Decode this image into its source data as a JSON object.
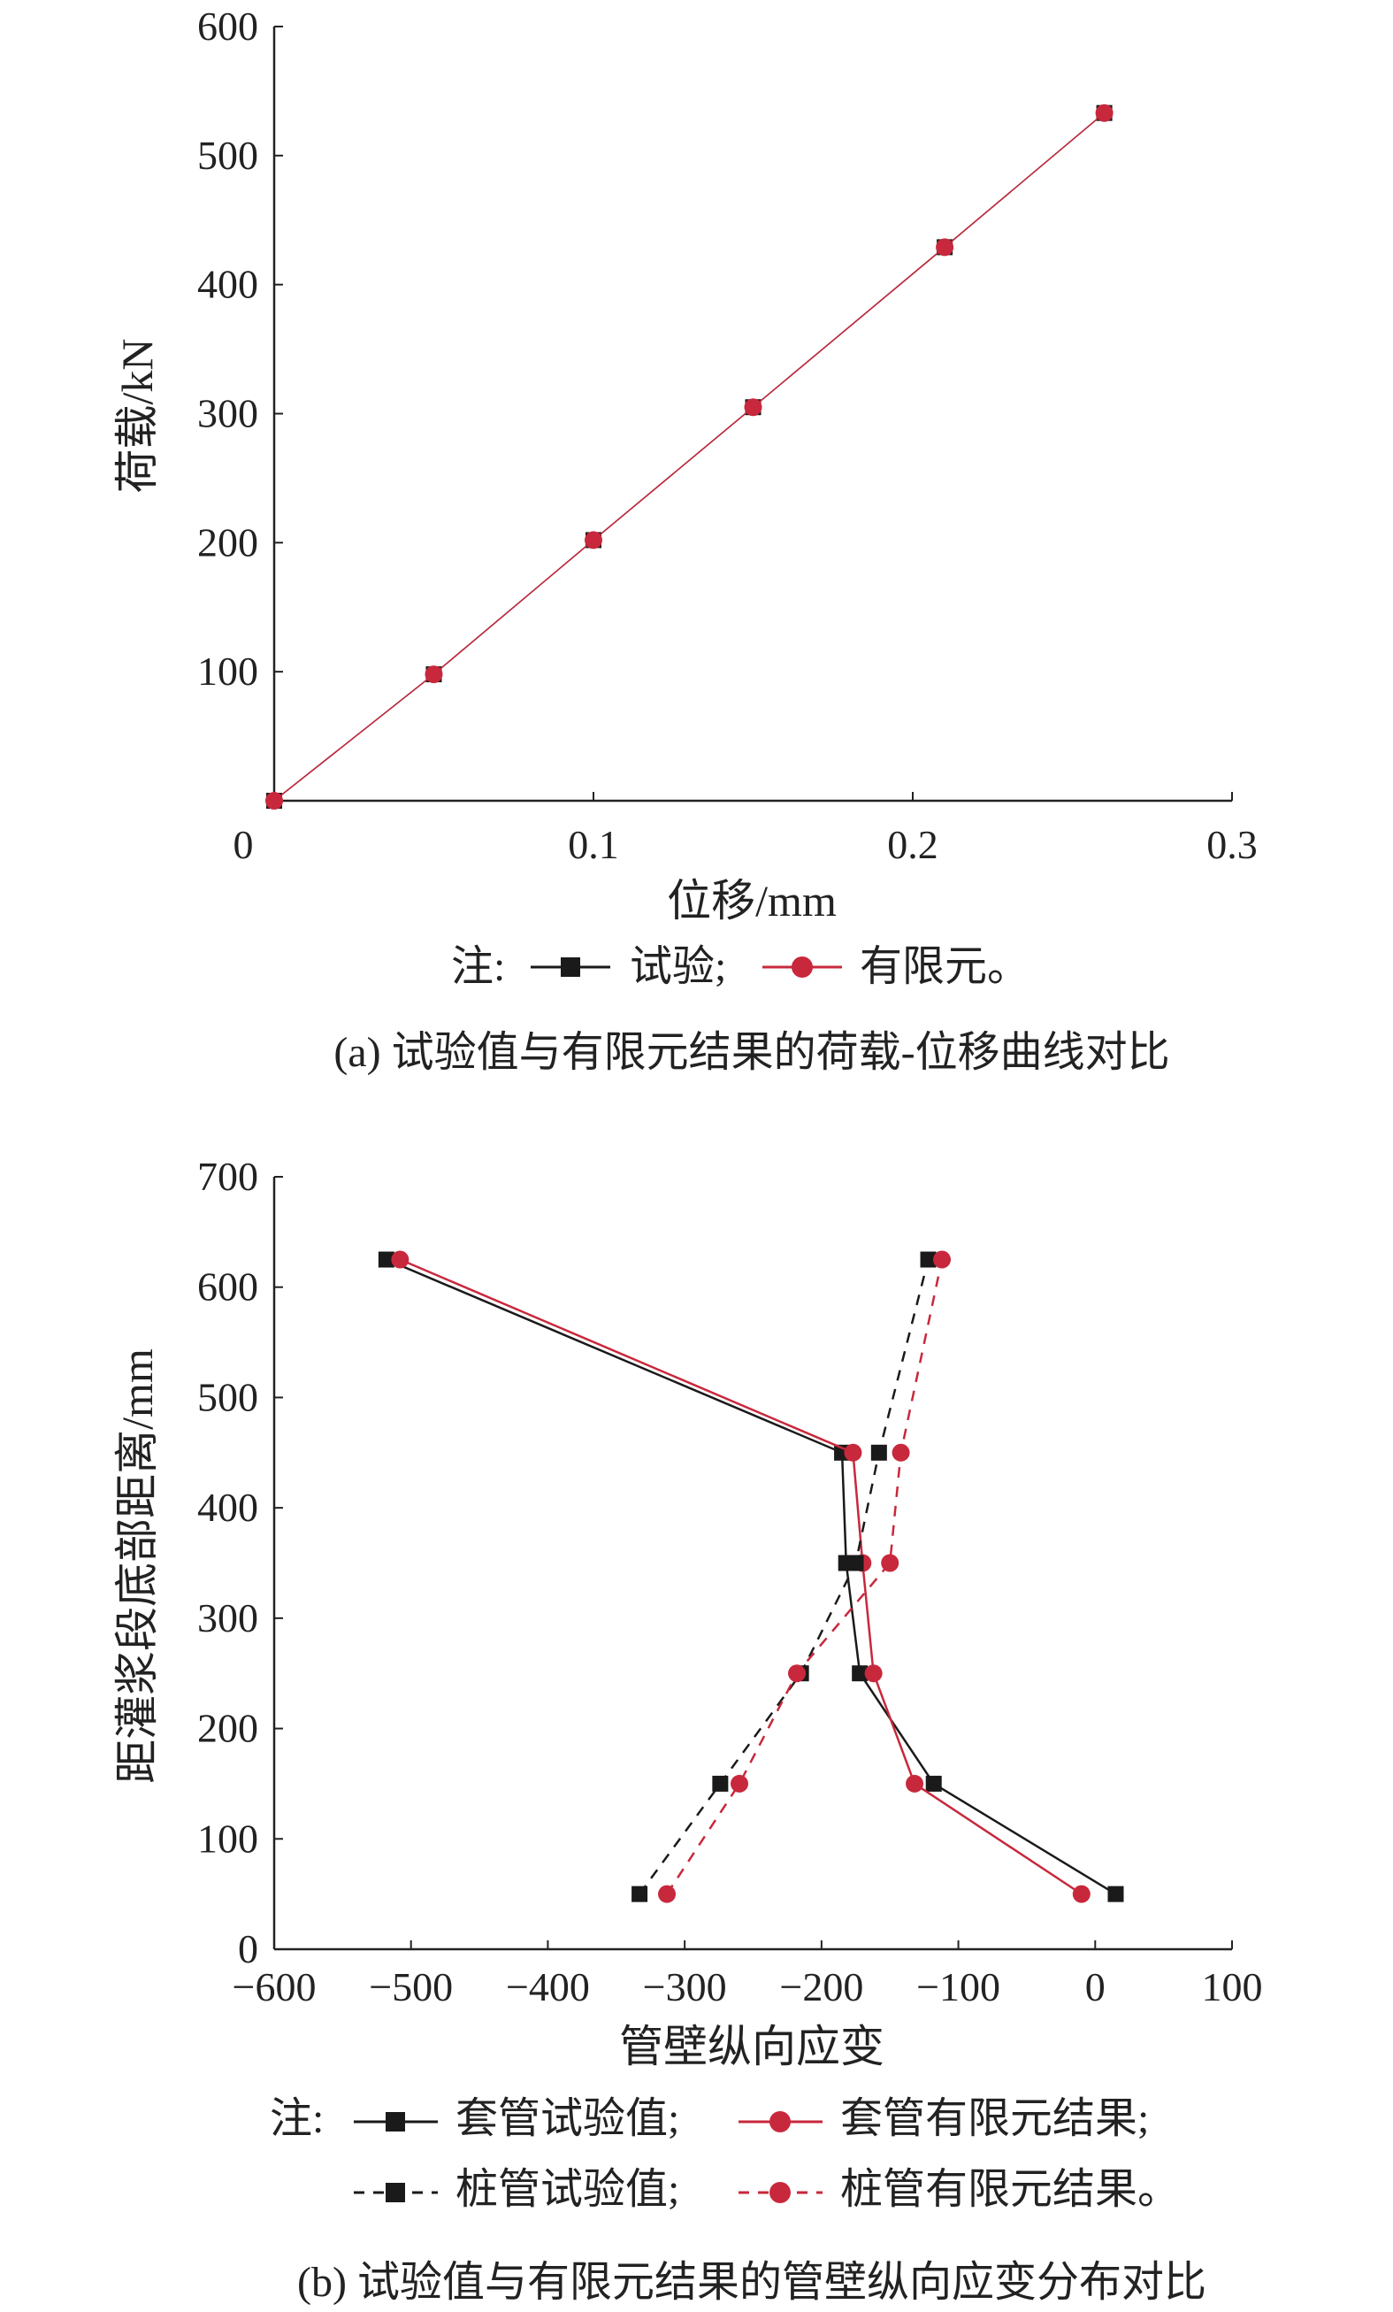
{
  "colors": {
    "test": "#1a1a1a",
    "fem": "#c8283c",
    "axis": "#222222"
  },
  "chart_data": [
    {
      "type": "scatter",
      "xlabel": "位移/mm",
      "ylabel": "荷载/kN",
      "xlim": [
        0,
        0.3
      ],
      "ylim": [
        0,
        600
      ],
      "xticks": [
        0,
        0.1,
        0.2,
        0.3
      ],
      "xtick_labels": [
        "0",
        "0.1",
        "0.2",
        "0.3"
      ],
      "yticks": [
        100,
        200,
        300,
        400,
        500,
        600
      ],
      "ytick_labels": [
        "100",
        "200",
        "300",
        "400",
        "500",
        "600"
      ],
      "grid": false,
      "legend_position": "below",
      "legend": {
        "prefix": "注:",
        "items": [
          {
            "label": "试验;"
          },
          {
            "label": "有限元。"
          }
        ]
      },
      "series": [
        {
          "name": "试验",
          "marker": "square",
          "color": "#1a1a1a",
          "dashed": false,
          "x": [
            0,
            0.05,
            0.1,
            0.15,
            0.21,
            0.26
          ],
          "y": [
            0,
            98,
            202,
            305,
            429,
            533
          ]
        },
        {
          "name": "有限元",
          "marker": "circle",
          "color": "#c8283c",
          "dashed": false,
          "x": [
            0,
            0.05,
            0.1,
            0.15,
            0.21,
            0.26
          ],
          "y": [
            0,
            98,
            202,
            305,
            429,
            533
          ]
        }
      ],
      "caption": "(a) 试验值与有限元结果的荷载-位移曲线对比"
    },
    {
      "type": "line",
      "xlabel": "管壁纵向应变",
      "ylabel": "距灌浆段底部距离/mm",
      "xlim": [
        -600,
        100
      ],
      "ylim": [
        0,
        700
      ],
      "xticks": [
        -600,
        -500,
        -400,
        -300,
        -200,
        -100,
        0,
        100
      ],
      "xtick_labels": [
        "−600",
        "−500",
        "−400",
        "−300",
        "−200",
        "−100",
        "0",
        "100"
      ],
      "yticks": [
        0,
        100,
        200,
        300,
        400,
        500,
        600,
        700
      ],
      "ytick_labels": [
        "0",
        "100",
        "200",
        "300",
        "400",
        "500",
        "600",
        "700"
      ],
      "grid": false,
      "legend_position": "below",
      "legend": {
        "prefix": "注:",
        "items": [
          {
            "label": "套管试验值;"
          },
          {
            "label": "套管有限元结果;"
          },
          {
            "label": "桩管试验值;"
          },
          {
            "label": "桩管有限元结果。"
          }
        ]
      },
      "series": [
        {
          "name": "套管试验值",
          "marker": "square",
          "color": "#1a1a1a",
          "dashed": false,
          "x": [
            15,
            -118,
            -172,
            -182,
            -185,
            -518
          ],
          "y": [
            50,
            150,
            250,
            350,
            450,
            625
          ]
        },
        {
          "name": "套管有限元结果",
          "marker": "circle",
          "color": "#c8283c",
          "dashed": false,
          "x": [
            -10,
            -132,
            -162,
            -170,
            -177,
            -508
          ],
          "y": [
            50,
            150,
            250,
            350,
            450,
            625
          ]
        },
        {
          "name": "桩管试验值",
          "marker": "square",
          "color": "#1a1a1a",
          "dashed": true,
          "x": [
            -333,
            -274,
            -215,
            -175,
            -158,
            -122
          ],
          "y": [
            50,
            150,
            250,
            350,
            450,
            625
          ]
        },
        {
          "name": "桩管有限元结果",
          "marker": "circle",
          "color": "#c8283c",
          "dashed": true,
          "x": [
            -313,
            -260,
            -218,
            -150,
            -142,
            -112
          ],
          "y": [
            50,
            150,
            250,
            350,
            450,
            625
          ]
        }
      ],
      "caption": "(b) 试验值与有限元结果的管壁纵向应变分布对比"
    }
  ]
}
